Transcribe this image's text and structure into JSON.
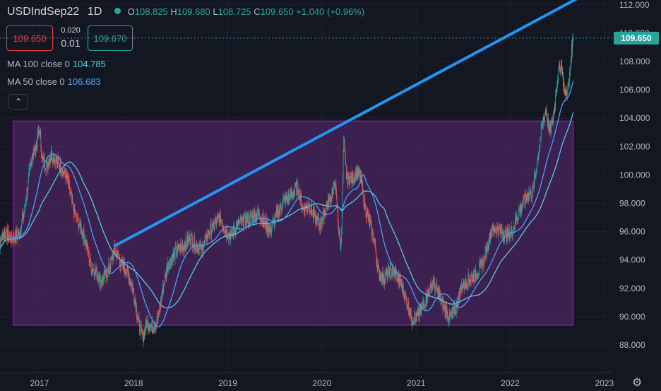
{
  "header": {
    "symbol": "USDIndSep22",
    "timeframe": "1D",
    "open_label": "O",
    "open": "108.825",
    "high_label": "H",
    "high": "109.680",
    "low_label": "L",
    "low": "108.725",
    "close_label": "C",
    "close": "109.650",
    "change": "+1.040 (+0.96%)"
  },
  "trade": {
    "sell": "109.650",
    "spread_top": "0.020",
    "spread_bottom": "0.01",
    "buy": "109.670"
  },
  "indicators": [
    {
      "label": "MA 100 close 0",
      "value": "104.785",
      "color": "#4dd0e1"
    },
    {
      "label": "MA 50 close 0",
      "value": "106.683",
      "color": "#42a5f5"
    }
  ],
  "collapse_icon": "chevron-up-icon",
  "settings_icon": "gear-icon",
  "chart_data": {
    "type": "candlestick",
    "y_ticks": [
      "112.000",
      "110.000",
      "108.000",
      "106.000",
      "104.000",
      "102.000",
      "100.000",
      "98.000",
      "96.000",
      "94.000",
      "92.000",
      "90.000",
      "88.000"
    ],
    "x_ticks": [
      "2017",
      "2018",
      "2019",
      "2020",
      "2021",
      "2022",
      "2023"
    ],
    "ylim": [
      87.0,
      112.3
    ],
    "last_price": "109.650",
    "price_series": [
      [
        2016.55,
        94.6
      ],
      [
        2016.62,
        96.0
      ],
      [
        2016.7,
        95.5
      ],
      [
        2016.78,
        95.8
      ],
      [
        2016.84,
        97.5
      ],
      [
        2016.88,
        99.5
      ],
      [
        2016.92,
        101.3
      ],
      [
        2016.96,
        101.9
      ],
      [
        2017.0,
        103.2
      ],
      [
        2017.03,
        101.0
      ],
      [
        2017.08,
        100.6
      ],
      [
        2017.12,
        101.5
      ],
      [
        2017.18,
        101.0
      ],
      [
        2017.24,
        100.4
      ],
      [
        2017.3,
        99.6
      ],
      [
        2017.36,
        97.5
      ],
      [
        2017.42,
        96.5
      ],
      [
        2017.48,
        95.6
      ],
      [
        2017.55,
        93.5
      ],
      [
        2017.6,
        93.2
      ],
      [
        2017.65,
        92.5
      ],
      [
        2017.7,
        92.9
      ],
      [
        2017.74,
        93.4
      ],
      [
        2017.8,
        94.8
      ],
      [
        2017.86,
        93.8
      ],
      [
        2017.92,
        93.3
      ],
      [
        2017.98,
        92.2
      ],
      [
        2018.02,
        91.0
      ],
      [
        2018.06,
        89.2
      ],
      [
        2018.1,
        88.6
      ],
      [
        2018.14,
        89.6
      ],
      [
        2018.2,
        89.2
      ],
      [
        2018.26,
        89.9
      ],
      [
        2018.3,
        91.6
      ],
      [
        2018.36,
        93.6
      ],
      [
        2018.42,
        94.3
      ],
      [
        2018.48,
        94.8
      ],
      [
        2018.54,
        95.0
      ],
      [
        2018.6,
        95.6
      ],
      [
        2018.66,
        95.0
      ],
      [
        2018.72,
        94.7
      ],
      [
        2018.8,
        96.0
      ],
      [
        2018.86,
        96.5
      ],
      [
        2018.92,
        97.0
      ],
      [
        2018.98,
        96.0
      ],
      [
        2019.04,
        95.7
      ],
      [
        2019.1,
        96.5
      ],
      [
        2019.18,
        96.8
      ],
      [
        2019.26,
        97.0
      ],
      [
        2019.32,
        97.3
      ],
      [
        2019.38,
        96.8
      ],
      [
        2019.45,
        96.0
      ],
      [
        2019.52,
        97.2
      ],
      [
        2019.6,
        98.2
      ],
      [
        2019.68,
        98.6
      ],
      [
        2019.74,
        99.2
      ],
      [
        2019.8,
        97.5
      ],
      [
        2019.86,
        98.0
      ],
      [
        2019.92,
        97.0
      ],
      [
        2019.98,
        96.5
      ],
      [
        2020.04,
        97.6
      ],
      [
        2020.1,
        98.5
      ],
      [
        2020.14,
        99.5
      ],
      [
        2020.18,
        96.0
      ],
      [
        2020.2,
        94.8
      ],
      [
        2020.22,
        99.0
      ],
      [
        2020.23,
        102.6
      ],
      [
        2020.26,
        99.8
      ],
      [
        2020.32,
        99.7
      ],
      [
        2020.38,
        100.2
      ],
      [
        2020.42,
        99.5
      ],
      [
        2020.46,
        97.6
      ],
      [
        2020.5,
        96.8
      ],
      [
        2020.56,
        95.2
      ],
      [
        2020.6,
        93.1
      ],
      [
        2020.66,
        92.7
      ],
      [
        2020.72,
        93.2
      ],
      [
        2020.78,
        93.0
      ],
      [
        2020.84,
        92.3
      ],
      [
        2020.9,
        91.1
      ],
      [
        2020.96,
        89.8
      ],
      [
        2021.0,
        89.9
      ],
      [
        2021.06,
        90.6
      ],
      [
        2021.12,
        91.5
      ],
      [
        2021.18,
        92.5
      ],
      [
        2021.24,
        91.6
      ],
      [
        2021.3,
        90.6
      ],
      [
        2021.36,
        89.9
      ],
      [
        2021.42,
        90.5
      ],
      [
        2021.48,
        92.1
      ],
      [
        2021.56,
        92.6
      ],
      [
        2021.64,
        93.0
      ],
      [
        2021.72,
        94.0
      ],
      [
        2021.8,
        96.0
      ],
      [
        2021.86,
        96.2
      ],
      [
        2021.94,
        95.8
      ],
      [
        2022.0,
        95.8
      ],
      [
        2022.06,
        96.8
      ],
      [
        2022.12,
        97.8
      ],
      [
        2022.18,
        98.6
      ],
      [
        2022.24,
        98.8
      ],
      [
        2022.3,
        101.6
      ],
      [
        2022.34,
        103.5
      ],
      [
        2022.38,
        104.6
      ],
      [
        2022.42,
        103.0
      ],
      [
        2022.46,
        104.1
      ],
      [
        2022.5,
        106.8
      ],
      [
        2022.54,
        108.0
      ],
      [
        2022.58,
        105.6
      ],
      [
        2022.62,
        106.2
      ],
      [
        2022.65,
        108.7
      ],
      [
        2022.67,
        109.65
      ]
    ],
    "overlays": {
      "trendline": {
        "from": [
          2017.8,
          95.0
        ],
        "to": [
          2022.7,
          112.4
        ],
        "color": "#2196f3"
      },
      "range_box": {
        "x": [
          2016.72,
          2022.67
        ],
        "y": [
          89.4,
          103.8
        ],
        "fill": "#4a2460",
        "border": "#9c27b0"
      }
    }
  }
}
